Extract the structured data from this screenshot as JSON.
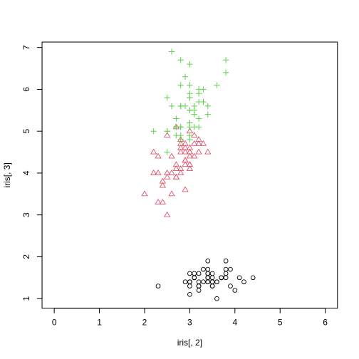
{
  "chart_data": {
    "type": "scatter",
    "xlabel": "iris[, 2]",
    "ylabel": "iris[, 3]",
    "xlim": [
      -0.27,
      6.27
    ],
    "ylim": [
      0.77,
      7.13
    ],
    "xticks": [
      "0",
      "1",
      "2",
      "3",
      "4",
      "5",
      "6"
    ],
    "yticks": [
      "1",
      "2",
      "3",
      "4",
      "5",
      "6",
      "7"
    ],
    "grid": false,
    "legend": "none",
    "series": [
      {
        "marker": "circle",
        "color": "#000000",
        "points": [
          [
            3.5,
            1.4
          ],
          [
            3.0,
            1.4
          ],
          [
            3.2,
            1.3
          ],
          [
            3.1,
            1.5
          ],
          [
            3.6,
            1.4
          ],
          [
            3.9,
            1.7
          ],
          [
            3.4,
            1.4
          ],
          [
            3.4,
            1.5
          ],
          [
            2.9,
            1.4
          ],
          [
            3.1,
            1.5
          ],
          [
            3.7,
            1.5
          ],
          [
            3.4,
            1.6
          ],
          [
            3.0,
            1.4
          ],
          [
            3.0,
            1.1
          ],
          [
            4.0,
            1.2
          ],
          [
            4.4,
            1.5
          ],
          [
            3.9,
            1.3
          ],
          [
            3.5,
            1.4
          ],
          [
            3.8,
            1.7
          ],
          [
            3.8,
            1.5
          ],
          [
            3.4,
            1.7
          ],
          [
            3.7,
            1.5
          ],
          [
            3.6,
            1.0
          ],
          [
            3.3,
            1.7
          ],
          [
            3.4,
            1.9
          ],
          [
            3.0,
            1.6
          ],
          [
            3.4,
            1.6
          ],
          [
            3.5,
            1.5
          ],
          [
            3.4,
            1.4
          ],
          [
            3.2,
            1.6
          ],
          [
            3.1,
            1.6
          ],
          [
            3.4,
            1.5
          ],
          [
            4.1,
            1.5
          ],
          [
            4.2,
            1.4
          ],
          [
            3.1,
            1.5
          ],
          [
            3.2,
            1.2
          ],
          [
            3.5,
            1.3
          ],
          [
            3.6,
            1.4
          ],
          [
            3.0,
            1.3
          ],
          [
            3.4,
            1.5
          ],
          [
            3.5,
            1.3
          ],
          [
            2.3,
            1.3
          ],
          [
            3.2,
            1.3
          ],
          [
            3.5,
            1.6
          ],
          [
            3.8,
            1.9
          ],
          [
            3.0,
            1.4
          ],
          [
            3.8,
            1.6
          ],
          [
            3.2,
            1.4
          ],
          [
            3.7,
            1.5
          ],
          [
            3.3,
            1.4
          ]
        ]
      },
      {
        "marker": "triangle",
        "color": "#DF536B",
        "points": [
          [
            3.2,
            4.7
          ],
          [
            3.2,
            4.5
          ],
          [
            3.1,
            4.9
          ],
          [
            2.3,
            4.0
          ],
          [
            2.8,
            4.6
          ],
          [
            2.8,
            4.5
          ],
          [
            3.3,
            4.7
          ],
          [
            2.4,
            3.3
          ],
          [
            2.9,
            4.6
          ],
          [
            2.7,
            3.9
          ],
          [
            2.0,
            3.5
          ],
          [
            3.0,
            4.2
          ],
          [
            2.2,
            4.0
          ],
          [
            2.9,
            4.7
          ],
          [
            2.9,
            3.6
          ],
          [
            3.1,
            4.4
          ],
          [
            3.0,
            4.5
          ],
          [
            2.7,
            4.1
          ],
          [
            2.2,
            4.5
          ],
          [
            2.5,
            3.9
          ],
          [
            3.2,
            4.8
          ],
          [
            2.8,
            4.0
          ],
          [
            2.5,
            4.9
          ],
          [
            2.8,
            4.7
          ],
          [
            2.9,
            4.3
          ],
          [
            3.0,
            4.4
          ],
          [
            2.8,
            4.8
          ],
          [
            3.0,
            5.0
          ],
          [
            2.9,
            4.5
          ],
          [
            2.6,
            3.5
          ],
          [
            2.4,
            3.8
          ],
          [
            2.4,
            3.7
          ],
          [
            2.7,
            3.9
          ],
          [
            2.7,
            5.1
          ],
          [
            3.0,
            4.5
          ],
          [
            3.4,
            4.5
          ],
          [
            3.1,
            4.7
          ],
          [
            2.3,
            4.4
          ],
          [
            3.0,
            4.1
          ],
          [
            2.5,
            4.0
          ],
          [
            2.6,
            4.4
          ],
          [
            3.0,
            4.6
          ],
          [
            2.6,
            4.0
          ],
          [
            2.3,
            3.3
          ],
          [
            2.7,
            4.2
          ],
          [
            3.0,
            4.2
          ],
          [
            2.9,
            4.2
          ],
          [
            2.9,
            4.3
          ],
          [
            2.5,
            3.0
          ],
          [
            2.8,
            4.1
          ]
        ]
      },
      {
        "marker": "plus",
        "color": "#61D04F",
        "points": [
          [
            3.3,
            6.0
          ],
          [
            2.7,
            5.1
          ],
          [
            3.0,
            5.9
          ],
          [
            2.9,
            5.6
          ],
          [
            3.0,
            5.8
          ],
          [
            3.0,
            6.6
          ],
          [
            2.5,
            4.5
          ],
          [
            2.9,
            6.3
          ],
          [
            2.5,
            5.8
          ],
          [
            3.6,
            6.1
          ],
          [
            3.2,
            5.1
          ],
          [
            2.7,
            5.3
          ],
          [
            3.0,
            5.5
          ],
          [
            2.5,
            5.0
          ],
          [
            2.8,
            5.1
          ],
          [
            3.2,
            5.3
          ],
          [
            3.0,
            5.5
          ],
          [
            3.8,
            6.7
          ],
          [
            2.6,
            6.9
          ],
          [
            2.2,
            5.0
          ],
          [
            3.2,
            5.7
          ],
          [
            2.8,
            4.9
          ],
          [
            2.8,
            6.7
          ],
          [
            2.7,
            4.9
          ],
          [
            3.3,
            5.7
          ],
          [
            3.2,
            6.0
          ],
          [
            2.8,
            4.8
          ],
          [
            3.0,
            4.9
          ],
          [
            2.8,
            5.6
          ],
          [
            3.0,
            5.8
          ],
          [
            2.8,
            6.1
          ],
          [
            3.8,
            6.4
          ],
          [
            2.8,
            5.6
          ],
          [
            2.8,
            5.1
          ],
          [
            2.6,
            5.6
          ],
          [
            3.0,
            6.1
          ],
          [
            3.4,
            5.6
          ],
          [
            3.1,
            5.5
          ],
          [
            3.0,
            4.8
          ],
          [
            3.1,
            5.4
          ],
          [
            3.1,
            5.6
          ],
          [
            3.1,
            5.1
          ],
          [
            2.7,
            5.1
          ],
          [
            3.2,
            5.9
          ],
          [
            3.3,
            5.7
          ],
          [
            3.0,
            5.2
          ],
          [
            2.5,
            5.0
          ],
          [
            3.0,
            5.2
          ],
          [
            3.4,
            5.4
          ],
          [
            3.0,
            5.1
          ]
        ]
      }
    ]
  }
}
